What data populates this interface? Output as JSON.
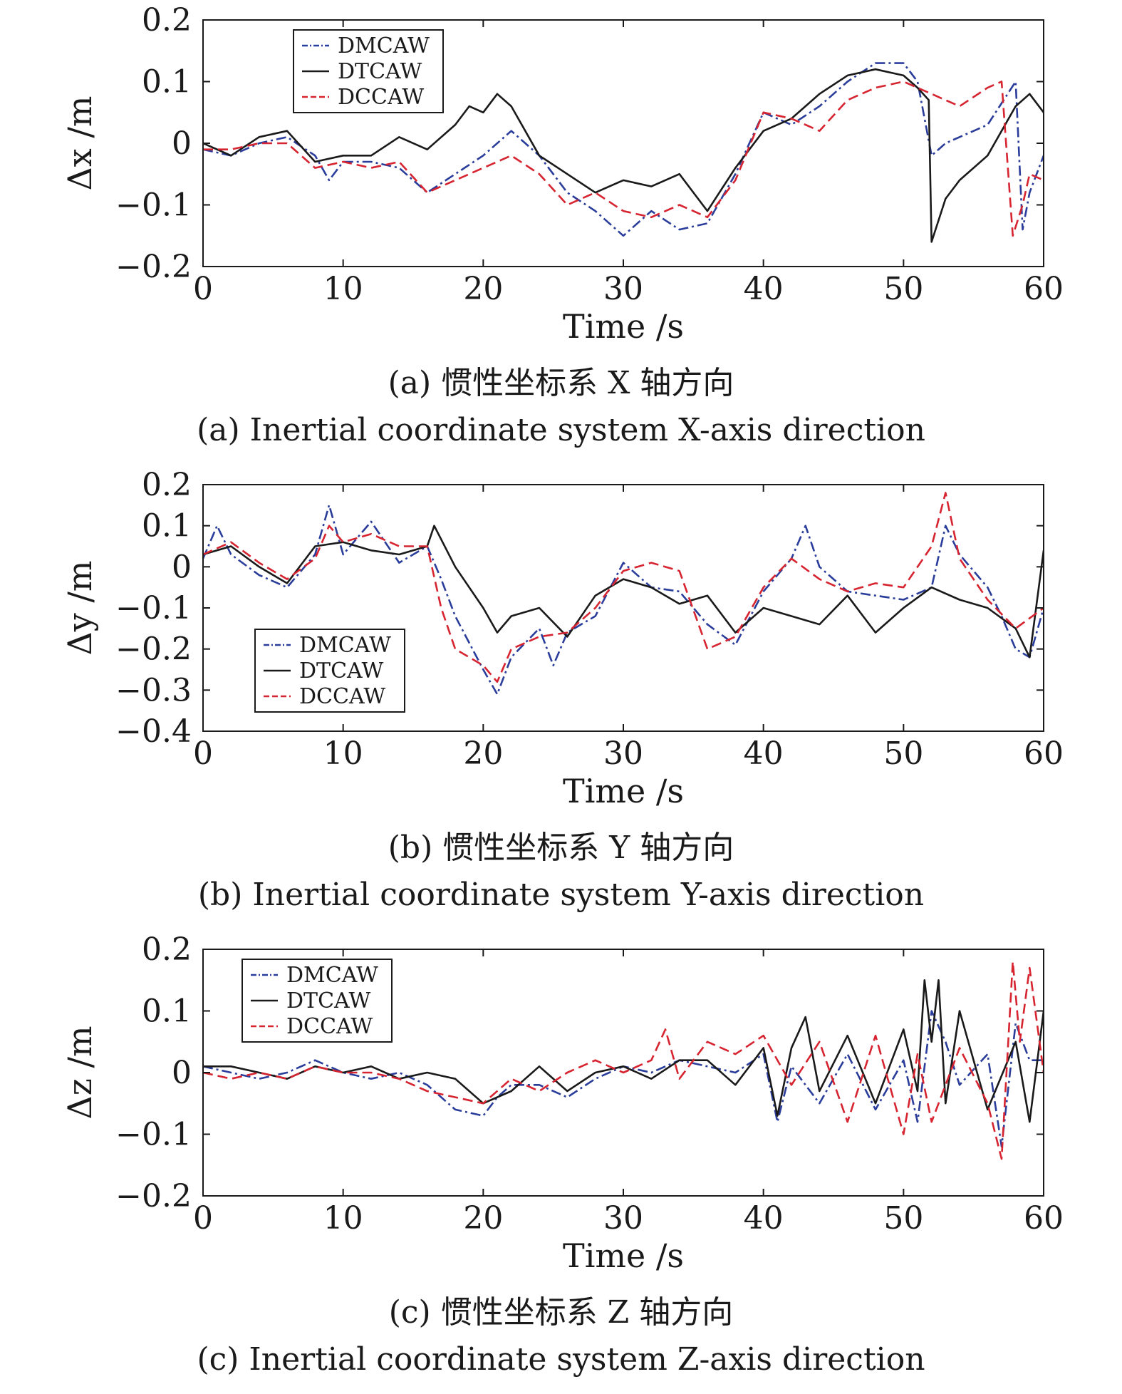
{
  "chart_data": [
    {
      "type": "line",
      "xlabel": "Time /s",
      "ylabel": "Δx /m",
      "xlim": [
        0,
        60
      ],
      "ylim": [
        -0.2,
        0.2
      ],
      "xticks": [
        "0",
        "10",
        "20",
        "30",
        "40",
        "50",
        "60"
      ],
      "yticks": [
        "−0.2",
        "−0.1",
        "0",
        "0.1",
        "0.2"
      ],
      "grid": false,
      "legend_position": "top-left",
      "caption_cn": "(a) 惯性坐标系 X 轴方向",
      "caption_en": "(a) Inertial coordinate system X-axis direction",
      "series": [
        {
          "name": "DMCAW",
          "color": "#2b3d9b",
          "dash": "dashdot",
          "x": [
            0,
            2,
            4,
            6,
            8,
            9,
            10,
            12,
            14,
            16,
            18,
            20,
            22,
            24,
            26,
            28,
            30,
            32,
            34,
            36,
            38,
            40,
            42,
            44,
            46,
            48,
            50,
            51,
            52,
            53,
            54,
            56,
            58,
            58.5,
            59,
            60
          ],
          "y": [
            -0.01,
            -0.02,
            0.0,
            0.01,
            -0.02,
            -0.06,
            -0.03,
            -0.03,
            -0.04,
            -0.08,
            -0.05,
            -0.02,
            0.02,
            -0.02,
            -0.08,
            -0.11,
            -0.15,
            -0.11,
            -0.14,
            -0.13,
            -0.05,
            0.05,
            0.03,
            0.06,
            0.1,
            0.13,
            0.13,
            0.1,
            -0.02,
            0.0,
            0.01,
            0.03,
            0.1,
            -0.14,
            -0.08,
            -0.02
          ]
        },
        {
          "name": "DTCAW",
          "color": "#1a1a1a",
          "dash": "solid",
          "x": [
            0,
            2,
            4,
            6,
            8,
            10,
            12,
            14,
            16,
            18,
            19,
            20,
            21,
            22,
            24,
            26,
            28,
            30,
            32,
            34,
            36,
            38,
            40,
            42,
            44,
            46,
            48,
            50,
            51,
            51.8,
            52,
            53,
            54,
            56,
            58,
            59,
            60
          ],
          "y": [
            0.0,
            -0.02,
            0.01,
            0.02,
            -0.03,
            -0.02,
            -0.02,
            0.01,
            -0.01,
            0.03,
            0.06,
            0.05,
            0.08,
            0.06,
            -0.02,
            -0.05,
            -0.08,
            -0.06,
            -0.07,
            -0.05,
            -0.11,
            -0.04,
            0.02,
            0.04,
            0.08,
            0.11,
            0.12,
            0.11,
            0.09,
            0.07,
            -0.16,
            -0.09,
            -0.06,
            -0.02,
            0.06,
            0.08,
            0.05
          ]
        },
        {
          "name": "DCCAW",
          "color": "#d62430",
          "dash": "dashed",
          "x": [
            0,
            2,
            4,
            6,
            8,
            10,
            12,
            14,
            16,
            18,
            20,
            22,
            24,
            26,
            28,
            30,
            32,
            34,
            36,
            38,
            40,
            42,
            44,
            46,
            48,
            50,
            52,
            54,
            56,
            57,
            57.8,
            58.5,
            59,
            60
          ],
          "y": [
            -0.01,
            -0.01,
            0.0,
            0.0,
            -0.04,
            -0.03,
            -0.04,
            -0.03,
            -0.08,
            -0.06,
            -0.04,
            -0.02,
            -0.05,
            -0.1,
            -0.08,
            -0.11,
            -0.12,
            -0.1,
            -0.12,
            -0.06,
            0.05,
            0.04,
            0.02,
            0.07,
            0.09,
            0.1,
            0.08,
            0.06,
            0.09,
            0.1,
            -0.15,
            -0.1,
            -0.05,
            -0.06
          ]
        }
      ]
    },
    {
      "type": "line",
      "xlabel": "Time /s",
      "ylabel": "Δy /m",
      "xlim": [
        0,
        60
      ],
      "ylim": [
        -0.4,
        0.2
      ],
      "xticks": [
        "0",
        "10",
        "20",
        "30",
        "40",
        "50",
        "60"
      ],
      "yticks": [
        "−0.4",
        "−0.3",
        "−0.2",
        "−0.1",
        "0",
        "0.1",
        "0.2"
      ],
      "grid": false,
      "legend_position": "bottom-left",
      "caption_cn": "(b) 惯性坐标系 Y 轴方向",
      "caption_en": "(b) Inertial coordinate system Y-axis direction",
      "series": [
        {
          "name": "DMCAW",
          "color": "#2b3d9b",
          "dash": "dashdot",
          "x": [
            0,
            1,
            2,
            4,
            6,
            8,
            9,
            10,
            12,
            14,
            16,
            17,
            18,
            20,
            21,
            22,
            24,
            25,
            26,
            28,
            30,
            32,
            34,
            36,
            38,
            40,
            42,
            43,
            44,
            46,
            48,
            50,
            52,
            53,
            54,
            56,
            57,
            58,
            59,
            60
          ],
          "y": [
            0.02,
            0.1,
            0.03,
            -0.02,
            -0.05,
            0.03,
            0.15,
            0.03,
            0.11,
            0.01,
            0.05,
            -0.03,
            -0.12,
            -0.25,
            -0.31,
            -0.22,
            -0.15,
            -0.24,
            -0.16,
            -0.12,
            0.01,
            -0.05,
            -0.06,
            -0.14,
            -0.19,
            -0.06,
            0.02,
            0.1,
            0.0,
            -0.06,
            -0.07,
            -0.08,
            -0.05,
            0.1,
            0.03,
            -0.05,
            -0.12,
            -0.2,
            -0.22,
            -0.1
          ]
        },
        {
          "name": "DTCAW",
          "color": "#1a1a1a",
          "dash": "solid",
          "x": [
            0,
            2,
            4,
            6,
            8,
            10,
            12,
            14,
            16,
            16.5,
            18,
            20,
            21,
            22,
            24,
            26,
            28,
            30,
            32,
            34,
            36,
            38,
            40,
            42,
            44,
            46,
            48,
            50,
            52,
            54,
            56,
            58,
            59,
            60
          ],
          "y": [
            0.03,
            0.05,
            0.0,
            -0.04,
            0.05,
            0.06,
            0.04,
            0.03,
            0.05,
            0.1,
            0.0,
            -0.1,
            -0.16,
            -0.12,
            -0.1,
            -0.17,
            -0.07,
            -0.03,
            -0.05,
            -0.09,
            -0.07,
            -0.16,
            -0.1,
            -0.12,
            -0.14,
            -0.07,
            -0.16,
            -0.1,
            -0.05,
            -0.08,
            -0.1,
            -0.15,
            -0.22,
            0.04
          ]
        },
        {
          "name": "DCCAW",
          "color": "#d62430",
          "dash": "dashed",
          "x": [
            0,
            2,
            4,
            6,
            8,
            9,
            10,
            12,
            14,
            16,
            17,
            18,
            20,
            21,
            22,
            24,
            26,
            28,
            30,
            32,
            34,
            36,
            38,
            40,
            42,
            44,
            46,
            48,
            50,
            52,
            53,
            54,
            56,
            58,
            60
          ],
          "y": [
            0.03,
            0.06,
            0.01,
            -0.03,
            0.02,
            0.1,
            0.06,
            0.08,
            0.05,
            0.05,
            -0.1,
            -0.2,
            -0.24,
            -0.28,
            -0.2,
            -0.17,
            -0.16,
            -0.1,
            -0.01,
            0.01,
            -0.01,
            -0.2,
            -0.17,
            -0.05,
            0.02,
            -0.03,
            -0.06,
            -0.04,
            -0.05,
            0.05,
            0.18,
            0.02,
            -0.08,
            -0.15,
            -0.1
          ]
        }
      ]
    },
    {
      "type": "line",
      "xlabel": "Time /s",
      "ylabel": "Δz /m",
      "xlim": [
        0,
        60
      ],
      "ylim": [
        -0.2,
        0.2
      ],
      "xticks": [
        "0",
        "10",
        "20",
        "30",
        "40",
        "50",
        "60"
      ],
      "yticks": [
        "−0.2",
        "−0.1",
        "0",
        "0.1",
        "0.2"
      ],
      "grid": false,
      "legend_position": "top-left",
      "caption_cn": "(c) 惯性坐标系 Z 轴方向",
      "caption_en": "(c) Inertial coordinate system Z-axis direction",
      "series": [
        {
          "name": "DMCAW",
          "color": "#2b3d9b",
          "dash": "dashdot",
          "x": [
            0,
            2,
            4,
            6,
            8,
            10,
            12,
            14,
            16,
            18,
            20,
            21,
            22,
            24,
            26,
            28,
            30,
            32,
            34,
            36,
            38,
            40,
            41,
            42,
            44,
            46,
            48,
            50,
            51,
            52,
            53,
            54,
            56,
            57,
            58,
            59,
            60
          ],
          "y": [
            0.01,
            0.0,
            -0.01,
            0.0,
            0.02,
            0.0,
            -0.01,
            0.0,
            -0.02,
            -0.06,
            -0.07,
            -0.04,
            -0.02,
            -0.02,
            -0.04,
            -0.01,
            0.01,
            0.0,
            0.02,
            0.01,
            0.0,
            0.03,
            -0.08,
            0.01,
            -0.05,
            0.03,
            -0.06,
            0.02,
            -0.08,
            0.1,
            0.05,
            -0.02,
            0.03,
            -0.12,
            0.08,
            0.02,
            0.02
          ]
        },
        {
          "name": "DTCAW",
          "color": "#1a1a1a",
          "dash": "solid",
          "x": [
            0,
            2,
            4,
            6,
            8,
            10,
            12,
            14,
            16,
            18,
            20,
            22,
            24,
            26,
            28,
            30,
            32,
            34,
            36,
            38,
            40,
            41,
            42,
            43,
            44,
            46,
            48,
            50,
            51,
            51.5,
            52,
            52.5,
            53,
            54,
            56,
            58,
            59,
            60
          ],
          "y": [
            0.01,
            0.01,
            0.0,
            -0.01,
            0.01,
            0.0,
            0.01,
            -0.01,
            0.0,
            -0.01,
            -0.05,
            -0.03,
            0.01,
            -0.03,
            0.0,
            0.01,
            -0.01,
            0.02,
            0.02,
            -0.02,
            0.04,
            -0.07,
            0.04,
            0.09,
            -0.03,
            0.06,
            -0.05,
            0.07,
            -0.03,
            0.15,
            0.05,
            0.15,
            -0.05,
            0.1,
            -0.06,
            0.05,
            -0.08,
            0.1
          ]
        },
        {
          "name": "DCCAW",
          "color": "#d62430",
          "dash": "dashed",
          "x": [
            0,
            2,
            4,
            6,
            8,
            10,
            12,
            14,
            16,
            18,
            20,
            22,
            24,
            26,
            28,
            30,
            32,
            33,
            34,
            36,
            38,
            40,
            42,
            44,
            46,
            48,
            50,
            51,
            52,
            54,
            56,
            57,
            57.8,
            58.3,
            59,
            60
          ],
          "y": [
            0.0,
            -0.01,
            0.0,
            -0.01,
            0.01,
            0.0,
            0.0,
            -0.01,
            -0.03,
            -0.04,
            -0.05,
            -0.01,
            -0.03,
            0.0,
            0.02,
            0.0,
            0.02,
            0.07,
            -0.01,
            0.05,
            0.03,
            0.06,
            -0.02,
            0.05,
            -0.08,
            0.06,
            -0.1,
            0.03,
            -0.08,
            0.04,
            -0.05,
            -0.14,
            0.18,
            0.05,
            0.17,
            0.0
          ]
        }
      ]
    }
  ]
}
